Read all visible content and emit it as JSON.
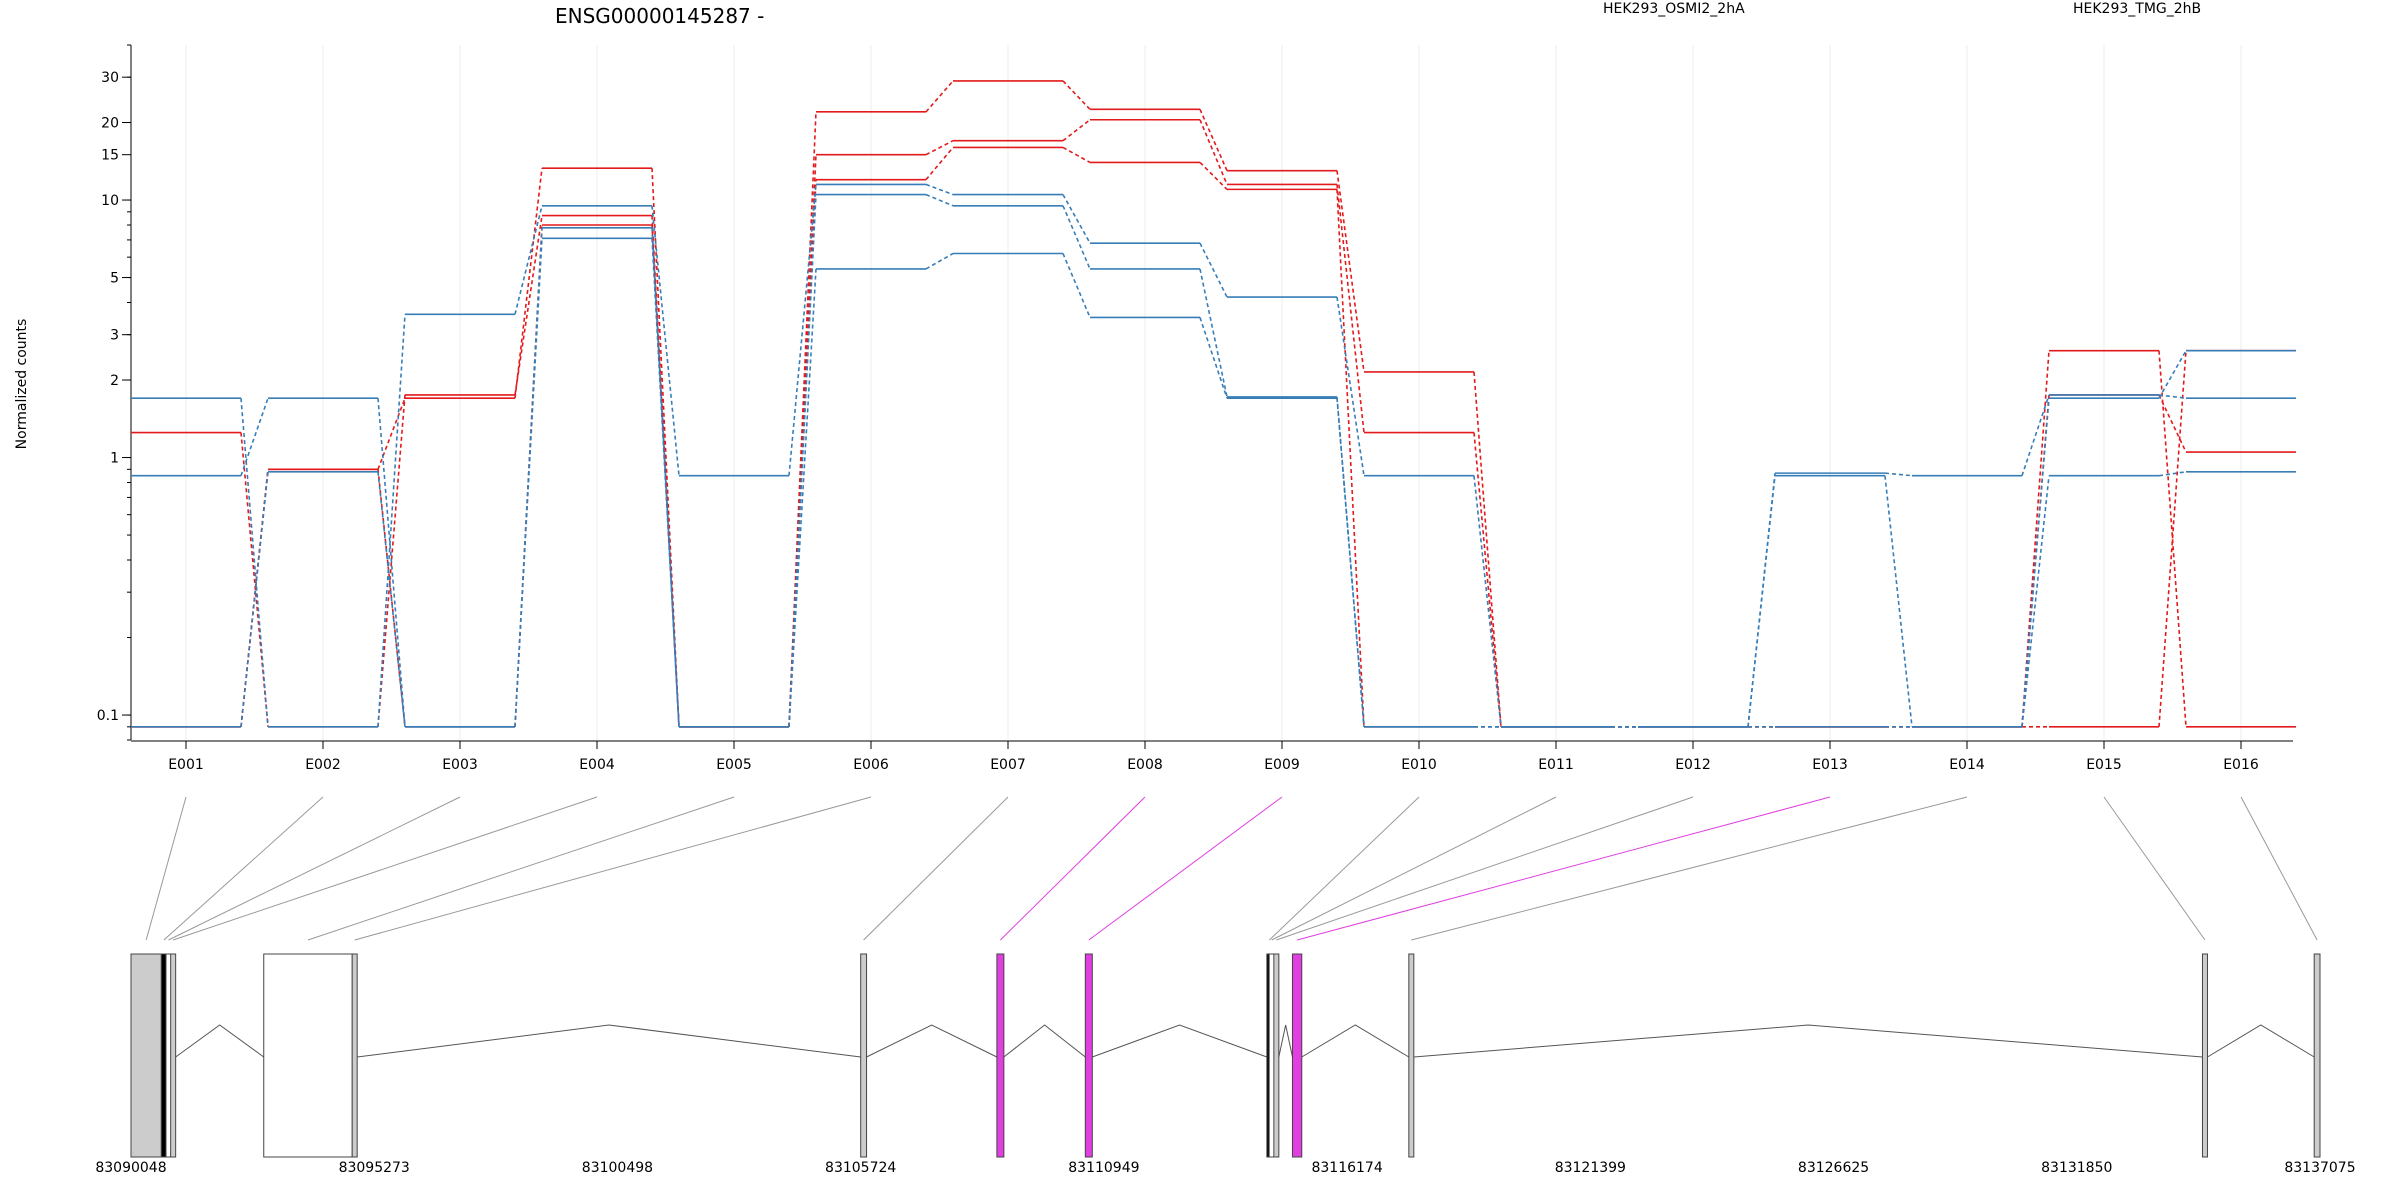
{
  "chart_data": {
    "type": "line",
    "title": "ENSG00000145287 -",
    "ylabel": "Normalized counts",
    "xlabel": "",
    "yscale": "log",
    "ylim": [
      0.08,
      40
    ],
    "yticks": [
      0.1,
      1,
      2,
      3,
      5,
      10,
      15,
      20,
      30
    ],
    "ytick_labels": [
      "0.1",
      "1",
      "2",
      "3",
      "5",
      "10",
      "15",
      "20",
      "30"
    ],
    "grid": "vertical-light",
    "legend_placement": "top",
    "categories": [
      "E001",
      "E002",
      "E003",
      "E004",
      "E005",
      "E006",
      "E007",
      "E008",
      "E009",
      "E010",
      "E011",
      "E012",
      "E013",
      "E014",
      "E015",
      "E016"
    ],
    "series": [
      {
        "name": "HEK293_OSMI2_2hA",
        "color": "#e31a1c",
        "values": [
          1.25,
          0.09,
          1.75,
          8.7,
          0.09,
          22,
          29,
          22.5,
          13,
          2.15,
          0.09,
          0.09,
          0.09,
          0.09,
          2.6,
          0.09
        ]
      },
      {
        "name": "",
        "color": "#e31a1c",
        "values": [
          0.09,
          0.9,
          1.7,
          13.3,
          0.09,
          15,
          17,
          20.5,
          11.5,
          1.25,
          0.09,
          0.09,
          0.09,
          0.09,
          1.75,
          1.05
        ]
      },
      {
        "name": "",
        "color": "#e31a1c",
        "values": [
          0.09,
          0.9,
          0.09,
          8.0,
          0.09,
          12,
          16,
          14,
          11,
          0.09,
          0.09,
          0.09,
          0.09,
          0.09,
          0.09,
          2.6
        ]
      },
      {
        "name": "HEK293_TMG_2hB",
        "color": "#377eb8",
        "values": [
          1.7,
          0.09,
          3.6,
          9.5,
          0.85,
          11.5,
          10.5,
          6.8,
          4.2,
          0.85,
          0.09,
          0.09,
          0.87,
          0.85,
          1.75,
          1.7
        ]
      },
      {
        "name": "",
        "color": "#377eb8",
        "values": [
          0.85,
          1.7,
          0.09,
          7.1,
          0.09,
          10.5,
          9.5,
          5.4,
          1.72,
          0.09,
          0.09,
          0.09,
          0.85,
          0.09,
          0.85,
          0.88
        ]
      },
      {
        "name": "",
        "color": "#377eb8",
        "values": [
          0.09,
          0.88,
          0.09,
          7.8,
          0.09,
          5.4,
          6.2,
          3.5,
          1.7,
          0.09,
          0.09,
          0.09,
          0.09,
          0.09,
          1.7,
          2.6
        ]
      }
    ],
    "gene_model": {
      "coordinate_labels": [
        "83090048",
        "83095273",
        "83100498",
        "83105724",
        "83110949",
        "83116174",
        "83121399",
        "83126625",
        "83131850",
        "83137075"
      ],
      "coord_min": 83090048,
      "coord_max": 83137075,
      "highlight_color": "#e040e0",
      "exons": [
        {
          "id": "E001",
          "start": 83090048,
          "end": 83090700,
          "fill": "#cccccc"
        },
        {
          "id": "E002",
          "start": 83090700,
          "end": 83090800,
          "fill": "#000000"
        },
        {
          "id": "E003",
          "start": 83090800,
          "end": 83090900,
          "fill": "#ffffff"
        },
        {
          "id": "E004",
          "start": 83090900,
          "end": 83091000,
          "fill": "#cccccc"
        },
        {
          "id": "E005",
          "start": 83092900,
          "end": 83094800,
          "fill": "#ffffff"
        },
        {
          "id": "E006",
          "start": 83094800,
          "end": 83094900,
          "fill": "#cccccc"
        },
        {
          "id": "E007",
          "start": 83105724,
          "end": 83105850,
          "fill": "#cccccc"
        },
        {
          "id": "E008",
          "start": 83108650,
          "end": 83108800,
          "fill": "#e040e0"
        },
        {
          "id": "E009",
          "start": 83110550,
          "end": 83110700,
          "fill": "#e040e0"
        },
        {
          "id": "E010",
          "start": 83114450,
          "end": 83114500,
          "fill": "#000000"
        },
        {
          "id": "E011",
          "start": 83114500,
          "end": 83114600,
          "fill": "#ffffff"
        },
        {
          "id": "E012",
          "start": 83114600,
          "end": 83114700,
          "fill": "#cccccc"
        },
        {
          "id": "E013",
          "start": 83115000,
          "end": 83115200,
          "fill": "#e040e0"
        },
        {
          "id": "E014",
          "start": 83117500,
          "end": 83117600,
          "fill": "#cccccc"
        },
        {
          "id": "E015",
          "start": 83134550,
          "end": 83134650,
          "fill": "#cccccc"
        },
        {
          "id": "E016",
          "start": 83136950,
          "end": 83137075,
          "fill": "#cccccc"
        }
      ],
      "connector_highlight": [
        "E008",
        "E009",
        "E013"
      ]
    }
  }
}
